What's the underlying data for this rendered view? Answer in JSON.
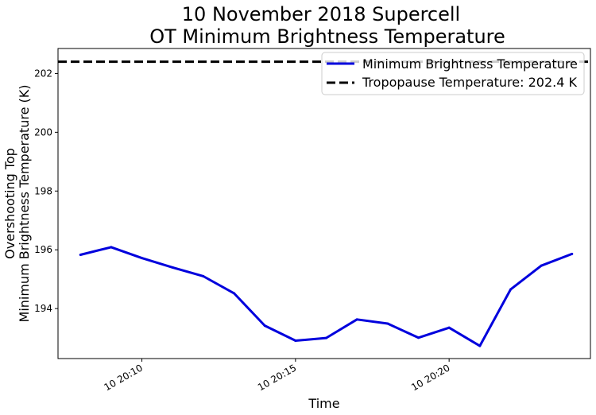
{
  "chart_data": {
    "type": "line",
    "title": [
      "10 November 2018 Supercell",
      "OT Minimum Brightness Temperature"
    ],
    "xlabel": "Time",
    "ylabel": [
      "Overshooting Top",
      "Minimum Brightness Temperature (K)"
    ],
    "x": [
      "20:08",
      "20:09",
      "20:10",
      "20:11",
      "20:12",
      "20:13",
      "20:14",
      "20:15",
      "20:16",
      "20:17",
      "20:18",
      "20:19",
      "20:20",
      "20:21",
      "20:22",
      "20:23",
      "20:24"
    ],
    "xlim": [
      "20:07.27",
      "20:24.60"
    ],
    "xticks": [
      {
        "value": "20:10",
        "label": "10 20:10"
      },
      {
        "value": "20:15",
        "label": "10 20:15"
      },
      {
        "value": "20:20",
        "label": "10 20:20"
      }
    ],
    "ylim": [
      192.3,
      202.85
    ],
    "yticks": [
      194,
      196,
      198,
      200,
      202
    ],
    "grid": false,
    "legend_position": "top-right",
    "series": [
      {
        "name": "Minimum Brightness Temperature",
        "color": "#0000dd",
        "style": "solid",
        "values": [
          195.83,
          196.09,
          195.72,
          195.4,
          195.1,
          194.52,
          193.42,
          192.91,
          193.0,
          193.63,
          193.49,
          193.01,
          193.35,
          192.73,
          194.65,
          195.46,
          195.86
        ]
      },
      {
        "name": "Tropopause Temperature: 202.4 K",
        "color": "#000000",
        "style": "dashed",
        "hline": 202.4
      }
    ]
  }
}
